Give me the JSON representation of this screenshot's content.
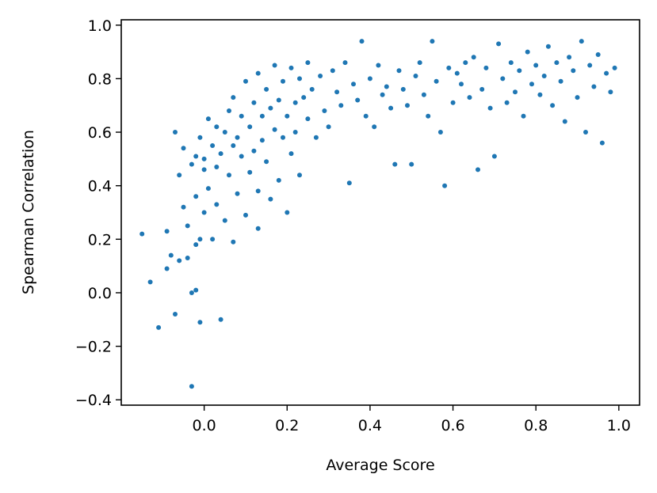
{
  "chart_data": {
    "type": "scatter",
    "title": "",
    "xlabel": "Average Score",
    "ylabel": "Spearman Correlation",
    "xlim": [
      -0.2,
      1.05
    ],
    "ylim": [
      -0.42,
      1.02
    ],
    "xticks": [
      0.0,
      0.2,
      0.4,
      0.6,
      0.8,
      1.0
    ],
    "xtick_labels": [
      "0.0",
      "0.2",
      "0.4",
      "0.6",
      "0.8",
      "1.0"
    ],
    "yticks": [
      -0.4,
      -0.2,
      0.0,
      0.2,
      0.4,
      0.6,
      0.8,
      1.0
    ],
    "ytick_labels": [
      "−0.4",
      "−0.2",
      "0.0",
      "0.2",
      "0.4",
      "0.6",
      "0.8",
      "1.0"
    ],
    "grid": false,
    "marker_color": "#1f77b4",
    "series": [
      {
        "x": [
          -0.15,
          -0.13,
          -0.11,
          -0.09,
          -0.09,
          -0.08,
          -0.07,
          -0.07,
          -0.06,
          -0.06,
          -0.05,
          -0.05,
          -0.04,
          -0.04,
          -0.03,
          -0.03,
          -0.03,
          -0.02,
          -0.02,
          -0.02,
          -0.02,
          -0.01,
          -0.01,
          -0.01,
          0.0,
          0.0,
          0.0,
          0.01,
          0.01,
          0.02,
          0.02,
          0.03,
          0.03,
          0.03,
          0.04,
          0.04,
          0.05,
          0.05,
          0.06,
          0.06,
          0.07,
          0.07,
          0.07,
          0.08,
          0.08,
          0.09,
          0.09,
          0.1,
          0.1,
          0.11,
          0.11,
          0.12,
          0.12,
          0.13,
          0.13,
          0.13,
          0.14,
          0.14,
          0.15,
          0.15,
          0.16,
          0.16,
          0.17,
          0.17,
          0.18,
          0.18,
          0.19,
          0.19,
          0.2,
          0.2,
          0.21,
          0.21,
          0.22,
          0.22,
          0.23,
          0.23,
          0.24,
          0.25,
          0.25,
          0.26,
          0.27,
          0.28,
          0.29,
          0.3,
          0.31,
          0.32,
          0.33,
          0.34,
          0.35,
          0.36,
          0.37,
          0.38,
          0.39,
          0.4,
          0.41,
          0.42,
          0.43,
          0.44,
          0.45,
          0.46,
          0.47,
          0.48,
          0.49,
          0.5,
          0.51,
          0.52,
          0.53,
          0.54,
          0.55,
          0.56,
          0.57,
          0.58,
          0.59,
          0.6,
          0.61,
          0.62,
          0.63,
          0.64,
          0.65,
          0.66,
          0.67,
          0.68,
          0.69,
          0.7,
          0.71,
          0.72,
          0.73,
          0.74,
          0.75,
          0.76,
          0.77,
          0.78,
          0.79,
          0.8,
          0.81,
          0.82,
          0.83,
          0.84,
          0.85,
          0.86,
          0.87,
          0.88,
          0.89,
          0.9,
          0.91,
          0.92,
          0.93,
          0.94,
          0.95,
          0.96,
          0.97,
          0.98,
          0.99
        ],
        "y": [
          0.22,
          0.04,
          -0.13,
          0.09,
          0.23,
          0.14,
          -0.08,
          0.6,
          0.44,
          0.12,
          0.32,
          0.54,
          0.13,
          0.25,
          0.0,
          0.48,
          -0.35,
          0.36,
          0.18,
          0.01,
          0.51,
          -0.11,
          0.2,
          0.58,
          0.46,
          0.3,
          0.5,
          0.39,
          0.65,
          0.55,
          0.2,
          0.47,
          0.62,
          0.33,
          -0.1,
          0.52,
          0.6,
          0.27,
          0.68,
          0.44,
          0.55,
          0.73,
          0.19,
          0.58,
          0.37,
          0.66,
          0.51,
          0.79,
          0.29,
          0.62,
          0.45,
          0.71,
          0.53,
          0.38,
          0.82,
          0.24,
          0.66,
          0.57,
          0.76,
          0.49,
          0.35,
          0.69,
          0.85,
          0.61,
          0.42,
          0.72,
          0.58,
          0.79,
          0.3,
          0.66,
          0.84,
          0.52,
          0.71,
          0.6,
          0.8,
          0.44,
          0.73,
          0.65,
          0.86,
          0.76,
          0.58,
          0.81,
          0.68,
          0.62,
          0.83,
          0.75,
          0.7,
          0.86,
          0.41,
          0.78,
          0.72,
          0.94,
          0.66,
          0.8,
          0.62,
          0.85,
          0.74,
          0.77,
          0.69,
          0.48,
          0.83,
          0.76,
          0.7,
          0.48,
          0.81,
          0.86,
          0.74,
          0.66,
          0.94,
          0.79,
          0.6,
          0.4,
          0.84,
          0.71,
          0.82,
          0.78,
          0.86,
          0.73,
          0.88,
          0.46,
          0.76,
          0.84,
          0.69,
          0.51,
          0.93,
          0.8,
          0.71,
          0.86,
          0.75,
          0.83,
          0.66,
          0.9,
          0.78,
          0.85,
          0.74,
          0.81,
          0.92,
          0.7,
          0.86,
          0.79,
          0.64,
          0.88,
          0.83,
          0.73,
          0.94,
          0.6,
          0.85,
          0.77,
          0.89,
          0.56,
          0.82,
          0.75,
          0.84
        ]
      }
    ]
  }
}
